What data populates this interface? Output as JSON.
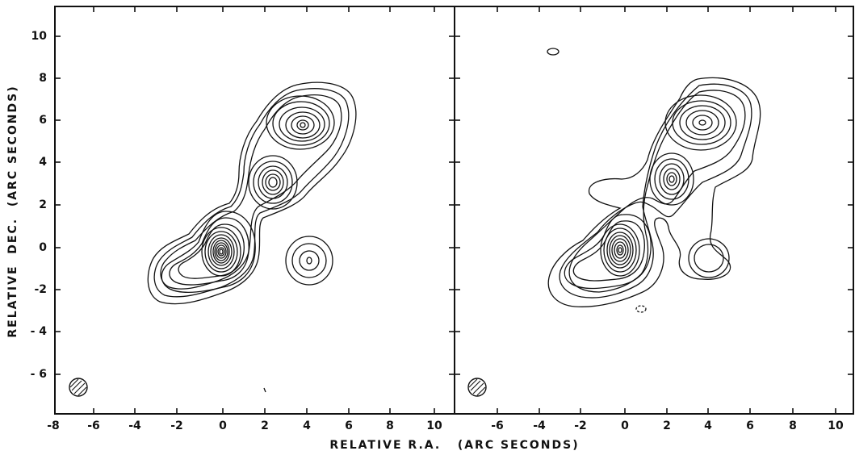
{
  "figure": {
    "xlabel": "RELATIVE R.A.   (ARC SECONDS)",
    "ylabel": "RELATIVE  DEC.  (ARC SECONDS)",
    "panels": [
      {
        "name": "left",
        "x_ticks": [
          "-8",
          "-6",
          "-4",
          "-2",
          "0",
          "2",
          "4",
          "6",
          "8",
          "10"
        ],
        "y_ticks": [
          "10",
          "8",
          "6",
          "4",
          "2",
          "0",
          "-2",
          "- 4",
          "- 6"
        ]
      },
      {
        "name": "right",
        "x_ticks": [
          "-6",
          "-4",
          "-2",
          "0",
          "2",
          "4",
          "6",
          "8",
          "10"
        ],
        "y_ticks": []
      }
    ]
  },
  "colors": {
    "ink": "#111111",
    "paper": "#ffffff"
  }
}
